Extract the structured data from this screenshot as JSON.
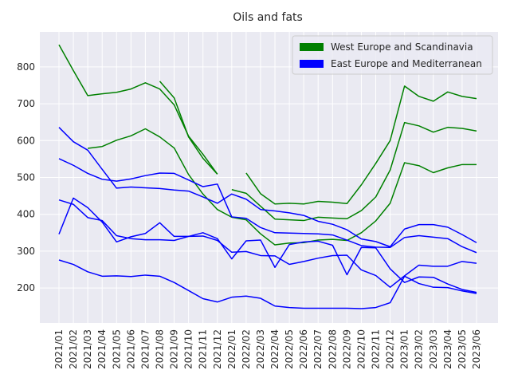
{
  "chart_data": {
    "type": "line",
    "title": "Oils and fats",
    "xlabel": "",
    "ylabel": "",
    "x": [
      "2021/01",
      "2021/02",
      "2021/03",
      "2021/04",
      "2021/05",
      "2021/06",
      "2021/07",
      "2021/08",
      "2021/09",
      "2021/10",
      "2021/11",
      "2021/12",
      "2022/01",
      "2022/02",
      "2022/03",
      "2022/04",
      "2022/05",
      "2022/06",
      "2022/07",
      "2022/08",
      "2022/09",
      "2022/10",
      "2022/11",
      "2022/12",
      "2023/01",
      "2023/02",
      "2023/03",
      "2023/04",
      "2023/05",
      "2023/06"
    ],
    "ylim": [
      105,
      895
    ],
    "yticks": [
      200,
      300,
      400,
      500,
      600,
      700,
      800
    ],
    "grid": true,
    "legend_position": "top-right",
    "colors": {
      "west": "#008000",
      "east": "#0000ff",
      "plot_bg": "#eaeaf2",
      "grid": "#ffffff"
    },
    "legend": [
      {
        "label": "West Europe and Scandinavia",
        "color": "#008000"
      },
      {
        "label": "East Europe and Mediterranean",
        "color": "#0000ff"
      }
    ],
    "series": [
      {
        "group": "west",
        "values": [
          860,
          790,
          722,
          727,
          731,
          740,
          757,
          740,
          697,
          612,
          563,
          509,
          null,
          null,
          null,
          null,
          null,
          null,
          null,
          null,
          null,
          null,
          null,
          null,
          null,
          null,
          null,
          null,
          null,
          null
        ]
      },
      {
        "group": "west",
        "values": [
          null,
          null,
          null,
          null,
          null,
          null,
          null,
          761,
          716,
          610,
          552,
          509,
          null,
          null,
          null,
          null,
          null,
          null,
          null,
          null,
          null,
          null,
          null,
          null,
          null,
          null,
          null,
          null,
          null,
          null
        ]
      },
      {
        "group": "west",
        "values": [
          null,
          null,
          579,
          584,
          601,
          613,
          632,
          610,
          580,
          508,
          455,
          413,
          392,
          385,
          347,
          317,
          322,
          323,
          330,
          332,
          329,
          350,
          382,
          430,
          540,
          532,
          513,
          526,
          535,
          535
        ]
      },
      {
        "group": "west",
        "values": [
          null,
          null,
          null,
          null,
          null,
          null,
          null,
          null,
          null,
          null,
          null,
          null,
          467,
          457,
          422,
          387,
          385,
          383,
          392,
          390,
          388,
          410,
          447,
          520,
          649,
          640,
          623,
          636,
          633,
          626
        ]
      },
      {
        "group": "west",
        "values": [
          null,
          null,
          null,
          null,
          null,
          null,
          null,
          null,
          null,
          null,
          null,
          null,
          null,
          512,
          456,
          428,
          430,
          428,
          435,
          433,
          429,
          480,
          538,
          600,
          748,
          720,
          707,
          732,
          720,
          714
        ]
      },
      {
        "group": "east",
        "values": [
          636,
          597,
          574,
          522,
          471,
          474,
          472,
          470,
          466,
          463,
          447,
          430,
          455,
          441,
          413,
          409,
          404,
          397,
          381,
          373,
          358,
          333,
          326,
          312,
          360,
          372,
          372,
          365,
          345,
          323
        ]
      },
      {
        "group": "east",
        "values": [
          551,
          533,
          511,
          495,
          490,
          496,
          505,
          512,
          511,
          493,
          475,
          482,
          393,
          389,
          364,
          350,
          349,
          348,
          347,
          344,
          330,
          315,
          311,
          310,
          337,
          342,
          338,
          334,
          312,
          296
        ]
      },
      {
        "group": "east",
        "values": [
          439,
          427,
          391,
          383,
          342,
          334,
          331,
          331,
          329,
          340,
          341,
          329,
          297,
          299,
          288,
          287,
          264,
          272,
          281,
          288,
          289,
          249,
          234,
          202,
          233,
          262,
          259,
          259,
          272,
          267
        ]
      },
      {
        "group": "east",
        "values": [
          346,
          444,
          418,
          379,
          325,
          339,
          348,
          377,
          340,
          340,
          350,
          334,
          279,
          328,
          330,
          256,
          318,
          325,
          327,
          316,
          236,
          310,
          309,
          252,
          215,
          230,
          229,
          211,
          196,
          188
        ]
      },
      {
        "group": "east",
        "values": [
          276,
          264,
          244,
          232,
          233,
          231,
          235,
          232,
          215,
          193,
          171,
          162,
          175,
          178,
          172,
          151,
          147,
          145,
          145,
          145,
          145,
          144,
          147,
          160,
          232,
          212,
          202,
          201,
          192,
          185
        ]
      }
    ]
  }
}
